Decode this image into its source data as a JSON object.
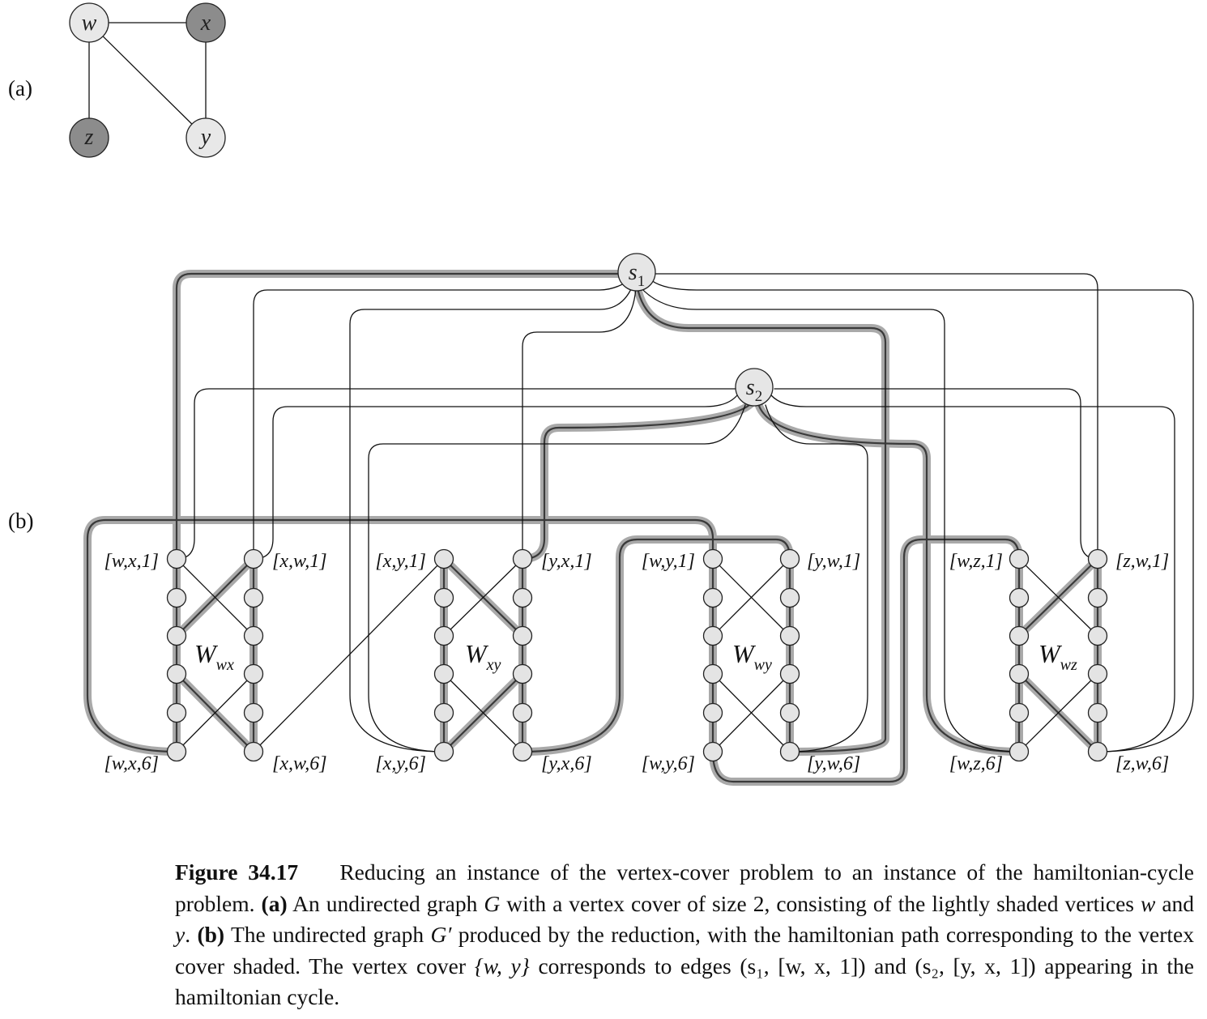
{
  "part_labels": {
    "a": "(a)",
    "b": "(b)"
  },
  "graph_g": {
    "vertices": [
      {
        "id": "w",
        "label": "w",
        "shade": "light"
      },
      {
        "id": "x",
        "label": "x",
        "shade": "dark"
      },
      {
        "id": "y",
        "label": "y",
        "shade": "light"
      },
      {
        "id": "z",
        "label": "z",
        "shade": "dark"
      }
    ],
    "edges": [
      [
        "w",
        "x"
      ],
      [
        "w",
        "y"
      ],
      [
        "w",
        "z"
      ],
      [
        "x",
        "y"
      ]
    ]
  },
  "graph_g_prime": {
    "start_vertices": [
      {
        "id": "s1",
        "label": "s",
        "sub": "1"
      },
      {
        "id": "s2",
        "label": "s",
        "sub": "2"
      }
    ],
    "widgets": [
      {
        "id": "Wwx",
        "label": "W",
        "sub": "wx",
        "left": "[w,x,1]",
        "left_bottom": "[w,x,6]",
        "right": "[x,w,1]",
        "right_bottom": "[x,w,6]"
      },
      {
        "id": "Wxy",
        "label": "W",
        "sub": "xy",
        "left": "[x,y,1]",
        "left_bottom": "[x,y,6]",
        "right": "[y,x,1]",
        "right_bottom": "[y,x,6]"
      },
      {
        "id": "Wwy",
        "label": "W",
        "sub": "wy",
        "left": "[w,y,1]",
        "left_bottom": "[w,y,6]",
        "right": "[y,w,1]",
        "right_bottom": "[y,w,6]"
      },
      {
        "id": "Wwz",
        "label": "W",
        "sub": "wz",
        "left": "[w,z,1]",
        "left_bottom": "[w,z,6]",
        "right": "[z,w,1]",
        "right_bottom": "[z,w,6]"
      }
    ]
  },
  "caption": {
    "figure_label": "Figure 34.17",
    "t1": "Reducing an instance of the vertex-cover problem to an instance of the hamiltonian-cycle problem.",
    "a_label": "(a)",
    "t2": "An undirected graph",
    "G": "G",
    "t3": "with a vertex cover of size 2, consisting of the lightly shaded vertices",
    "w": "w",
    "and": "and",
    "y": "y",
    "t4": ".",
    "b_label": "(b)",
    "t5": "The undirected graph",
    "Gp": "G′",
    "t6": "produced by the reduction, with the hamiltonian path corresponding to the vertex cover shaded. The vertex cover",
    "cover": "{w, y}",
    "t7": "corresponds to edges",
    "edge1": "(s₁, [w, x, 1])",
    "and2": "and",
    "edge2": "(s₂, [y, x, 1])",
    "t8": "appearing in the hamiltonian cycle."
  }
}
